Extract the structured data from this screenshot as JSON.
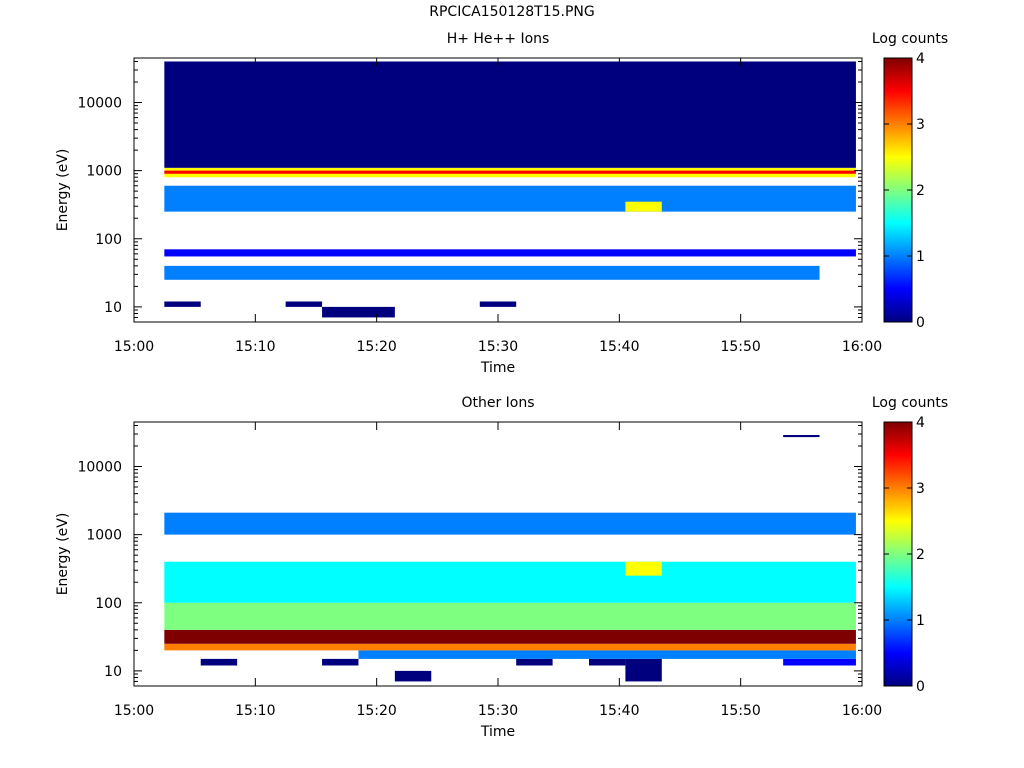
{
  "title": "RPCICA150128T15.PNG",
  "colors": {
    "jet": [
      "#00007f",
      "#0000ff",
      "#007fff",
      "#00ffff",
      "#7fff7f",
      "#ffff00",
      "#ff7f00",
      "#ff0000",
      "#7f0000"
    ]
  },
  "chart_data": [
    {
      "type": "heatmap",
      "title": "H+ He++ Ions",
      "xlabel": "Time",
      "ylabel": "Energy (eV)",
      "xlim": [
        "15:00",
        "16:00"
      ],
      "xticks": [
        "15:00",
        "15:10",
        "15:20",
        "15:30",
        "15:40",
        "15:50",
        "16:00"
      ],
      "ylim": [
        6,
        45000
      ],
      "yscale": "log",
      "yticks": [
        "10",
        "100",
        "1000",
        "10000"
      ],
      "colorbar": {
        "label": "Log counts",
        "range": [
          0,
          4
        ],
        "ticks": [
          "0",
          "1",
          "2",
          "3",
          "4"
        ]
      },
      "time_bins_minutes": [
        2,
        5,
        8,
        11,
        14,
        17,
        20,
        23,
        26,
        29,
        32,
        35,
        38,
        41,
        44,
        47,
        50,
        53,
        56,
        59
      ],
      "cells": [
        {
          "energy_range": [
            10,
            12
          ],
          "time_range": [
            2.5,
            5.5
          ],
          "log_counts": 0.1
        },
        {
          "energy_range": [
            10,
            12
          ],
          "time_range": [
            12.5,
            15.5
          ],
          "log_counts": 0.1
        },
        {
          "energy_range": [
            10,
            12
          ],
          "time_range": [
            28.5,
            31.5
          ],
          "log_counts": 0.1
        },
        {
          "energy_range": [
            7,
            10
          ],
          "time_range": [
            15.5,
            21.5
          ],
          "log_counts": 0.1
        },
        {
          "energy_range": [
            25,
            40
          ],
          "time_range": [
            2.5,
            56.5
          ],
          "log_counts": 1.2
        },
        {
          "energy_range": [
            55,
            70
          ],
          "time_range": [
            2.5,
            59.5
          ],
          "log_counts": 0.3
        },
        {
          "energy_range": [
            250,
            600
          ],
          "time_range": [
            2.5,
            59.5
          ],
          "log_counts": 1.0
        },
        {
          "energy_range": [
            250,
            350
          ],
          "time_range": [
            40.5,
            43.5
          ],
          "log_counts": 2.6
        },
        {
          "energy_range": [
            800,
            1100
          ],
          "time_range": [
            2.5,
            59.5
          ],
          "log_counts": 2.5
        },
        {
          "energy_range": [
            900,
            1000
          ],
          "time_range": [
            2.5,
            59.5
          ],
          "log_counts": 3.3
        },
        {
          "energy_range": [
            1100,
            40000
          ],
          "time_range": [
            2.5,
            59.5
          ],
          "log_counts": 0.2
        }
      ]
    },
    {
      "type": "heatmap",
      "title": "Other Ions",
      "xlabel": "Time",
      "ylabel": "Energy (eV)",
      "xlim": [
        "15:00",
        "16:00"
      ],
      "xticks": [
        "15:00",
        "15:10",
        "15:20",
        "15:30",
        "15:40",
        "15:50",
        "16:00"
      ],
      "ylim": [
        6,
        45000
      ],
      "yscale": "log",
      "yticks": [
        "10",
        "100",
        "1000",
        "10000"
      ],
      "colorbar": {
        "label": "Log counts",
        "range": [
          0,
          4
        ],
        "ticks": [
          "0",
          "1",
          "2",
          "3",
          "4"
        ]
      },
      "time_bins_minutes": [
        2,
        5,
        8,
        11,
        14,
        17,
        20,
        23,
        26,
        29,
        32,
        35,
        38,
        41,
        44,
        47,
        50,
        53,
        56,
        59
      ],
      "cells": [
        {
          "energy_range": [
            12,
            15
          ],
          "time_range": [
            5.5,
            8.5
          ],
          "log_counts": 0.1
        },
        {
          "energy_range": [
            12,
            15
          ],
          "time_range": [
            15.5,
            18.5
          ],
          "log_counts": 0.1
        },
        {
          "energy_range": [
            12,
            15
          ],
          "time_range": [
            31.5,
            34.5
          ],
          "log_counts": 0.2
        },
        {
          "energy_range": [
            12,
            15
          ],
          "time_range": [
            37.5,
            40.5
          ],
          "log_counts": 0.1
        },
        {
          "energy_range": [
            7,
            15
          ],
          "time_range": [
            40.5,
            43.5
          ],
          "log_counts": 0.1
        },
        {
          "energy_range": [
            7,
            10
          ],
          "time_range": [
            21.5,
            24.5
          ],
          "log_counts": 0.1
        },
        {
          "energy_range": [
            12,
            15
          ],
          "time_range": [
            53.5,
            59.5
          ],
          "log_counts": 0.3
        },
        {
          "energy_range": [
            15,
            20
          ],
          "time_range": [
            18.5,
            59.5
          ],
          "log_counts": 1.0
        },
        {
          "energy_range": [
            20,
            25
          ],
          "time_range": [
            2.5,
            59.5
          ],
          "log_counts": 2.8
        },
        {
          "energy_range": [
            25,
            40
          ],
          "time_range": [
            2.5,
            59.5
          ],
          "log_counts": 3.8
        },
        {
          "energy_range": [
            40,
            100
          ],
          "time_range": [
            2.5,
            59.5
          ],
          "log_counts": 2.0
        },
        {
          "energy_range": [
            100,
            400
          ],
          "time_range": [
            2.5,
            59.5
          ],
          "log_counts": 1.6
        },
        {
          "energy_range": [
            250,
            400
          ],
          "time_range": [
            40.5,
            43.5
          ],
          "log_counts": 2.4
        },
        {
          "energy_range": [
            1000,
            2100
          ],
          "time_range": [
            2.5,
            59.5
          ],
          "log_counts": 0.9
        },
        {
          "energy_range": [
            27000,
            29000
          ],
          "time_range": [
            53.5,
            56.5
          ],
          "log_counts": 0.2
        }
      ]
    }
  ]
}
